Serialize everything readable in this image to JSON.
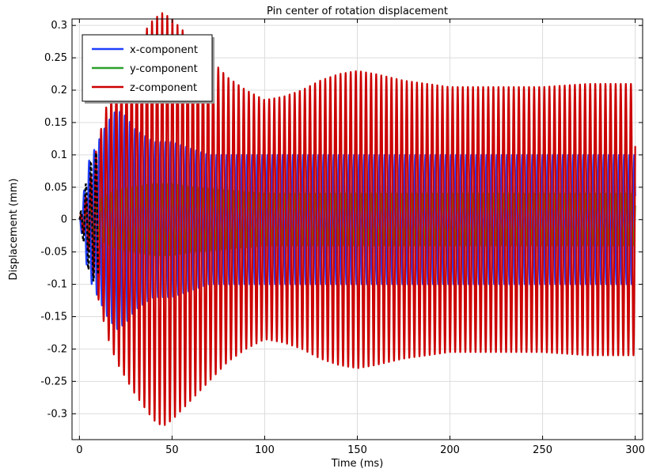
{
  "chart_data": {
    "type": "line",
    "title": "Pin center of rotation displacement",
    "xlabel": "Time (ms)",
    "ylabel": "Displacement (mm)",
    "xlim": [
      -4,
      304
    ],
    "ylim": [
      -0.34,
      0.31
    ],
    "xticks": [
      0,
      50,
      100,
      150,
      200,
      250,
      300
    ],
    "yticks": [
      -0.3,
      -0.25,
      -0.2,
      -0.15,
      -0.1,
      -0.05,
      0,
      0.05,
      0.1,
      0.15,
      0.2,
      0.25,
      0.3
    ],
    "grid": true,
    "legend_position": "top-left",
    "series": [
      {
        "name": "x-component",
        "color": "#1f3fff",
        "oscillation_period_ms": 2.75,
        "envelope": {
          "t": [
            0,
            5,
            10,
            15,
            20,
            25,
            30,
            40,
            50,
            60,
            70,
            80,
            100,
            120,
            150,
            200,
            250,
            300
          ],
          "amplitude": [
            0.0,
            0.09,
            0.12,
            0.15,
            0.17,
            0.16,
            0.14,
            0.12,
            0.12,
            0.11,
            0.1,
            0.1,
            0.1,
            0.1,
            0.1,
            0.1,
            0.1,
            0.1
          ]
        }
      },
      {
        "name": "y-component",
        "color": "#2ca02c",
        "oscillation_period_ms": 2.75,
        "envelope": {
          "t": [
            0,
            5,
            10,
            20,
            40,
            50,
            60,
            80,
            100,
            150,
            200,
            250,
            300
          ],
          "amplitude": [
            0.0,
            0.02,
            0.03,
            0.045,
            0.055,
            0.055,
            0.05,
            0.045,
            0.04,
            0.04,
            0.04,
            0.04,
            0.04
          ]
        }
      },
      {
        "name": "z-component",
        "color": "#cc0000",
        "oscillation_period_ms": 2.75,
        "envelope": {
          "t": [
            0,
            5,
            10,
            15,
            20,
            30,
            40,
            45,
            50,
            60,
            70,
            80,
            90,
            100,
            110,
            120,
            130,
            140,
            150,
            160,
            175,
            200,
            225,
            250,
            275,
            300
          ],
          "amplitude": [
            0.0,
            0.05,
            0.12,
            0.18,
            0.22,
            0.27,
            0.31,
            0.32,
            0.31,
            0.28,
            0.25,
            0.22,
            0.2,
            0.185,
            0.19,
            0.2,
            0.215,
            0.225,
            0.23,
            0.225,
            0.215,
            0.205,
            0.205,
            0.205,
            0.21,
            0.21
          ]
        }
      }
    ]
  }
}
